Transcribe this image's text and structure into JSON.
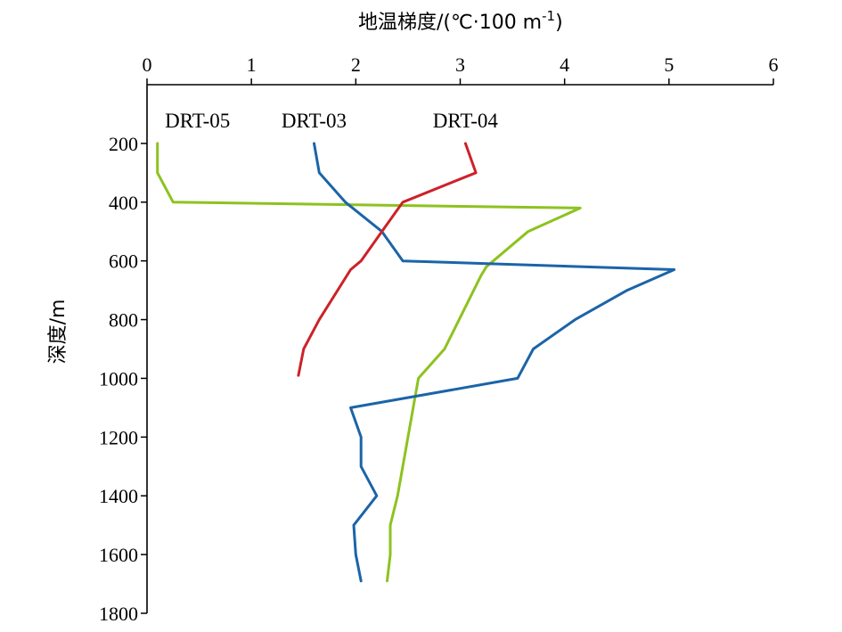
{
  "chart_data": {
    "type": "line",
    "orientation": "depth-profile (x on top, depth increasing downward)",
    "xlabel": "地温梯度/(℃·100 m",
    "xlabel_sup": "-1",
    "xlabel_close": ")",
    "ylabel": "深度/m",
    "xlim": [
      0,
      6
    ],
    "ylim": [
      1800,
      0
    ],
    "x_ticks": [
      "0",
      "1",
      "2",
      "3",
      "4",
      "5",
      "6"
    ],
    "y_ticks": [
      "200",
      "400",
      "600",
      "800",
      "1000",
      "1200",
      "1400",
      "1600",
      "1800"
    ],
    "grid": false,
    "legend": "labels above curve tops",
    "series": [
      {
        "name": "DRT-05",
        "color": "#8dc21f",
        "points": [
          [
            0.1,
            200
          ],
          [
            0.1,
            300
          ],
          [
            0.25,
            400
          ],
          [
            4.15,
            420
          ],
          [
            3.65,
            500
          ],
          [
            3.25,
            620
          ],
          [
            3.2,
            650
          ],
          [
            2.85,
            900
          ],
          [
            2.6,
            1000
          ],
          [
            2.5,
            1200
          ],
          [
            2.4,
            1400
          ],
          [
            2.33,
            1500
          ],
          [
            2.33,
            1600
          ],
          [
            2.3,
            1690
          ]
        ]
      },
      {
        "name": "DRT-03",
        "color": "#1b64a8",
        "points": [
          [
            1.6,
            200
          ],
          [
            1.65,
            300
          ],
          [
            1.9,
            400
          ],
          [
            2.25,
            500
          ],
          [
            2.45,
            600
          ],
          [
            5.05,
            630
          ],
          [
            4.6,
            700
          ],
          [
            4.1,
            800
          ],
          [
            3.7,
            900
          ],
          [
            3.55,
            1000
          ],
          [
            1.95,
            1100
          ],
          [
            2.05,
            1200
          ],
          [
            2.05,
            1300
          ],
          [
            2.2,
            1400
          ],
          [
            1.98,
            1500
          ],
          [
            2.0,
            1600
          ],
          [
            2.05,
            1690
          ]
        ]
      },
      {
        "name": "DRT-04",
        "color": "#cc2229",
        "points": [
          [
            3.05,
            200
          ],
          [
            3.15,
            300
          ],
          [
            2.45,
            400
          ],
          [
            2.25,
            500
          ],
          [
            2.05,
            600
          ],
          [
            1.95,
            630
          ],
          [
            1.65,
            800
          ],
          [
            1.5,
            900
          ],
          [
            1.45,
            990
          ]
        ]
      }
    ]
  }
}
